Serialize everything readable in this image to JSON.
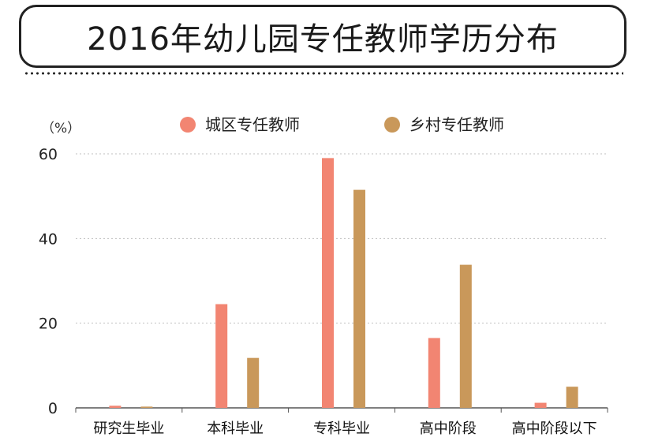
{
  "title": "2016年幼儿园专任教师学历分布",
  "colors": {
    "urban": "#f28572",
    "rural": "#c9985a",
    "grid": "#bfbfbf",
    "axis": "#555555"
  },
  "chart_data": {
    "type": "bar",
    "y_unit": "（%）",
    "ylim": [
      0,
      60
    ],
    "yticks": [
      "0",
      "20",
      "40",
      "60"
    ],
    "grid": true,
    "legend_position": "top",
    "categories": [
      "研究生毕业",
      "本科毕业",
      "专科毕业",
      "高中阶段",
      "高中阶段以下"
    ],
    "series": [
      {
        "name": "城区专任教师",
        "color": "#f28572",
        "values": [
          0.5,
          24.5,
          59,
          16.5,
          1.2
        ]
      },
      {
        "name": "乡村专任教师",
        "color": "#c9985a",
        "values": [
          0.3,
          11.8,
          51.5,
          33.8,
          5.0
        ]
      }
    ]
  }
}
